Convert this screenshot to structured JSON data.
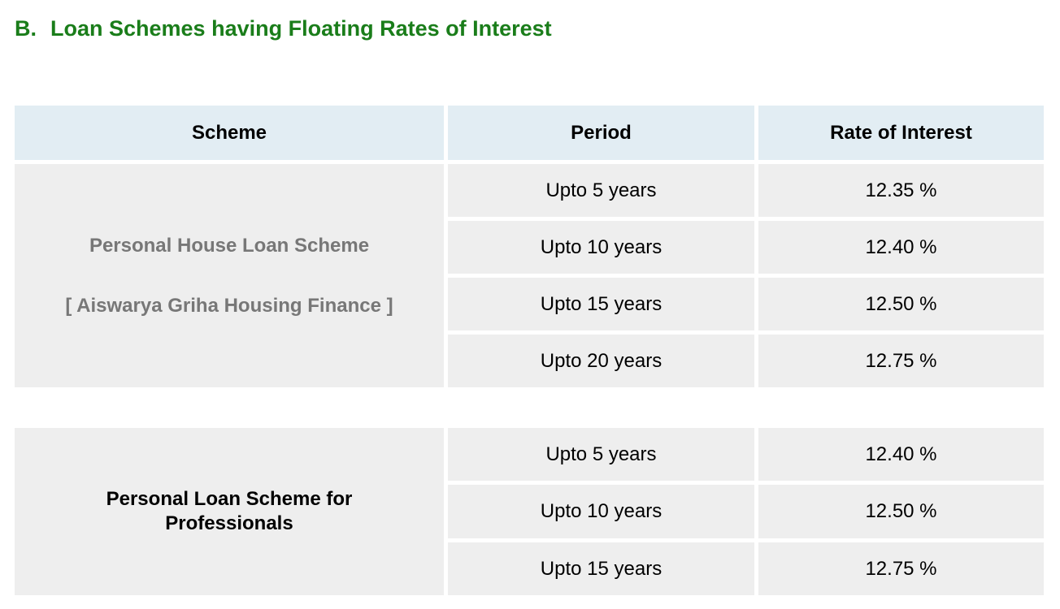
{
  "heading": {
    "prefix": "B.",
    "text": "Loan Schemes having Floating Rates of Interest"
  },
  "colors": {
    "heading_green": "#1a7d1a",
    "header_bg": "#e2edf3",
    "cell_bg": "#eeeeee",
    "scheme1_text_gray": "#777777"
  },
  "table": {
    "headers": [
      "Scheme",
      "Period",
      "Rate of Interest"
    ],
    "sections": [
      {
        "scheme_lines": [
          "Personal House Loan Scheme",
          "[ Aiswarya Griha Housing Finance ]"
        ],
        "rows": [
          {
            "period": "Upto 5 years",
            "rate": "12.35 %"
          },
          {
            "period": "Upto 10 years",
            "rate": "12.40 %"
          },
          {
            "period": "Upto 15 years",
            "rate": "12.50 %"
          },
          {
            "period": "Upto 20 years",
            "rate": "12.75 %"
          }
        ]
      },
      {
        "scheme_name": "Personal Loan Scheme for Professionals",
        "rows": [
          {
            "period": "Upto 5 years",
            "rate": "12.40 %"
          },
          {
            "period": "Upto 10 years",
            "rate": "12.50 %"
          },
          {
            "period": "Upto 15 years",
            "rate": "12.75 %"
          }
        ]
      }
    ]
  }
}
